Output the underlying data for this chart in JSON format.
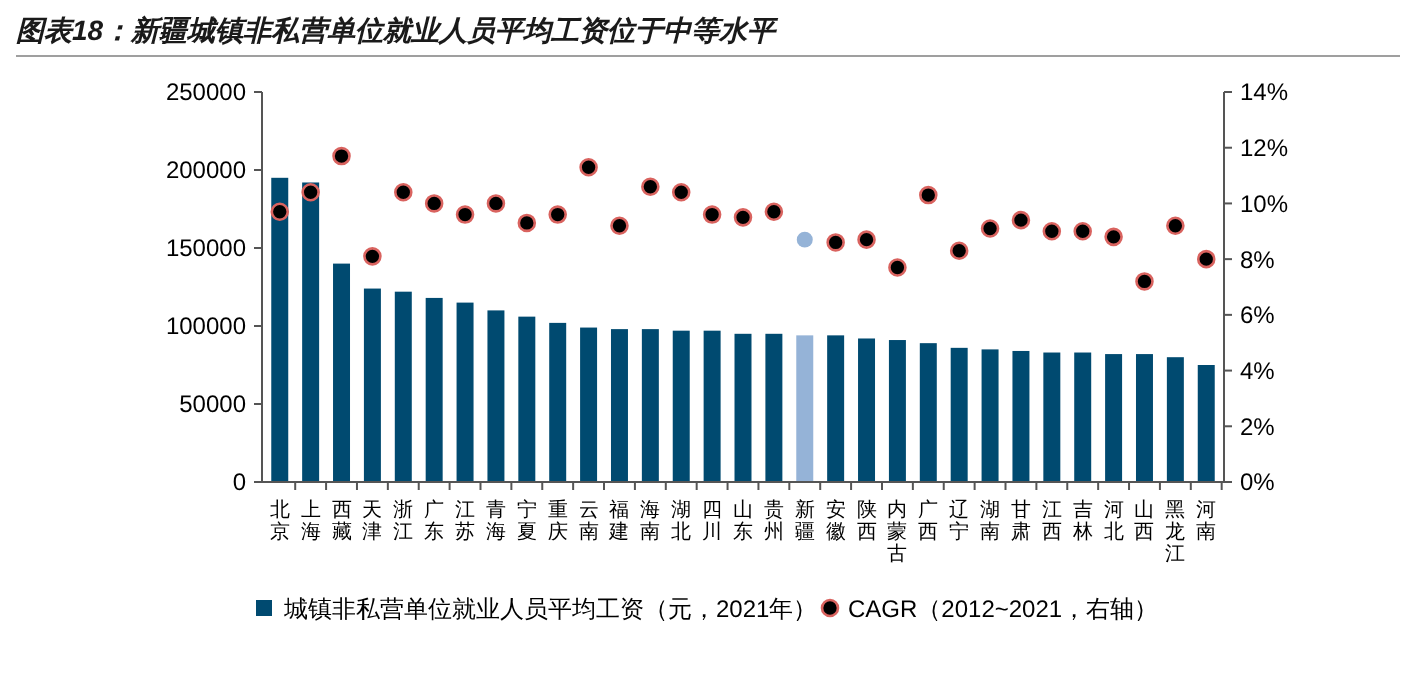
{
  "chart_data": {
    "type": "bar",
    "title": "图表18：新疆城镇非私营单位就业人员平均工资位于中等水平",
    "categories": [
      "北京",
      "上海",
      "西藏",
      "天津",
      "浙江",
      "广东",
      "江苏",
      "青海",
      "宁夏",
      "重庆",
      "云南",
      "福建",
      "海南",
      "湖北",
      "四川",
      "山东",
      "贵州",
      "新疆",
      "安徽",
      "陕西",
      "内蒙古",
      "广西",
      "辽宁",
      "湖南",
      "甘肃",
      "江西",
      "吉林",
      "河北",
      "山西",
      "黑龙江",
      "河南"
    ],
    "series": [
      {
        "name": "城镇非私营单位就业人员平均工资（元，2021年）",
        "color": "#004a70",
        "colors": [
          "#004a70",
          "#004a70",
          "#004a70",
          "#004a70",
          "#004a70",
          "#004a70",
          "#004a70",
          "#004a70",
          "#004a70",
          "#004a70",
          "#004a70",
          "#004a70",
          "#004a70",
          "#004a70",
          "#004a70",
          "#004a70",
          "#004a70",
          "#95b3d7",
          "#004a70",
          "#004a70",
          "#004a70",
          "#004a70",
          "#004a70",
          "#004a70",
          "#004a70",
          "#004a70",
          "#004a70",
          "#004a70",
          "#004a70",
          "#004a70",
          "#004a70"
        ],
        "values": [
          195000,
          192000,
          140000,
          124000,
          122000,
          118000,
          115000,
          110000,
          106000,
          102000,
          99000,
          98000,
          98000,
          97000,
          97000,
          95000,
          95000,
          94000,
          94000,
          92000,
          91000,
          89000,
          86000,
          85000,
          84000,
          83000,
          83000,
          82000,
          82000,
          80000,
          75000
        ]
      },
      {
        "name": "CAGR（2012~2021，右轴）",
        "type": "scatter",
        "axis": "y2",
        "marker": "circle",
        "color": "#000000",
        "colors": [
          "#000000",
          "#000000",
          "#000000",
          "#000000",
          "#000000",
          "#000000",
          "#000000",
          "#000000",
          "#000000",
          "#000000",
          "#000000",
          "#000000",
          "#000000",
          "#000000",
          "#000000",
          "#000000",
          "#000000",
          "#95b3d7",
          "#000000",
          "#000000",
          "#000000",
          "#000000",
          "#000000",
          "#000000",
          "#000000",
          "#000000",
          "#000000",
          "#000000",
          "#000000",
          "#000000",
          "#000000"
        ],
        "values": [
          9.7,
          10.4,
          11.7,
          8.1,
          10.4,
          10.0,
          9.6,
          10.0,
          9.3,
          9.6,
          11.3,
          9.2,
          10.6,
          10.4,
          9.6,
          9.5,
          9.7,
          8.7,
          8.6,
          8.7,
          7.7,
          10.3,
          8.3,
          9.1,
          9.4,
          9.0,
          9.0,
          8.8,
          7.2,
          9.2,
          8.0
        ]
      }
    ],
    "ylim": [
      0,
      250000
    ],
    "yticks": [
      0,
      50000,
      100000,
      150000,
      200000,
      250000
    ],
    "y2lim": [
      0,
      14
    ],
    "y2ticks": [
      {
        "value": 0,
        "label": "0%"
      },
      {
        "value": 2,
        "label": "2%"
      },
      {
        "value": 4,
        "label": "4%"
      },
      {
        "value": 6,
        "label": "6%"
      },
      {
        "value": 8,
        "label": "8%"
      },
      {
        "value": 10,
        "label": "10%"
      },
      {
        "value": 12,
        "label": "12%"
      },
      {
        "value": 14,
        "label": "14%"
      }
    ],
    "grid": false,
    "legend": "bottom"
  }
}
